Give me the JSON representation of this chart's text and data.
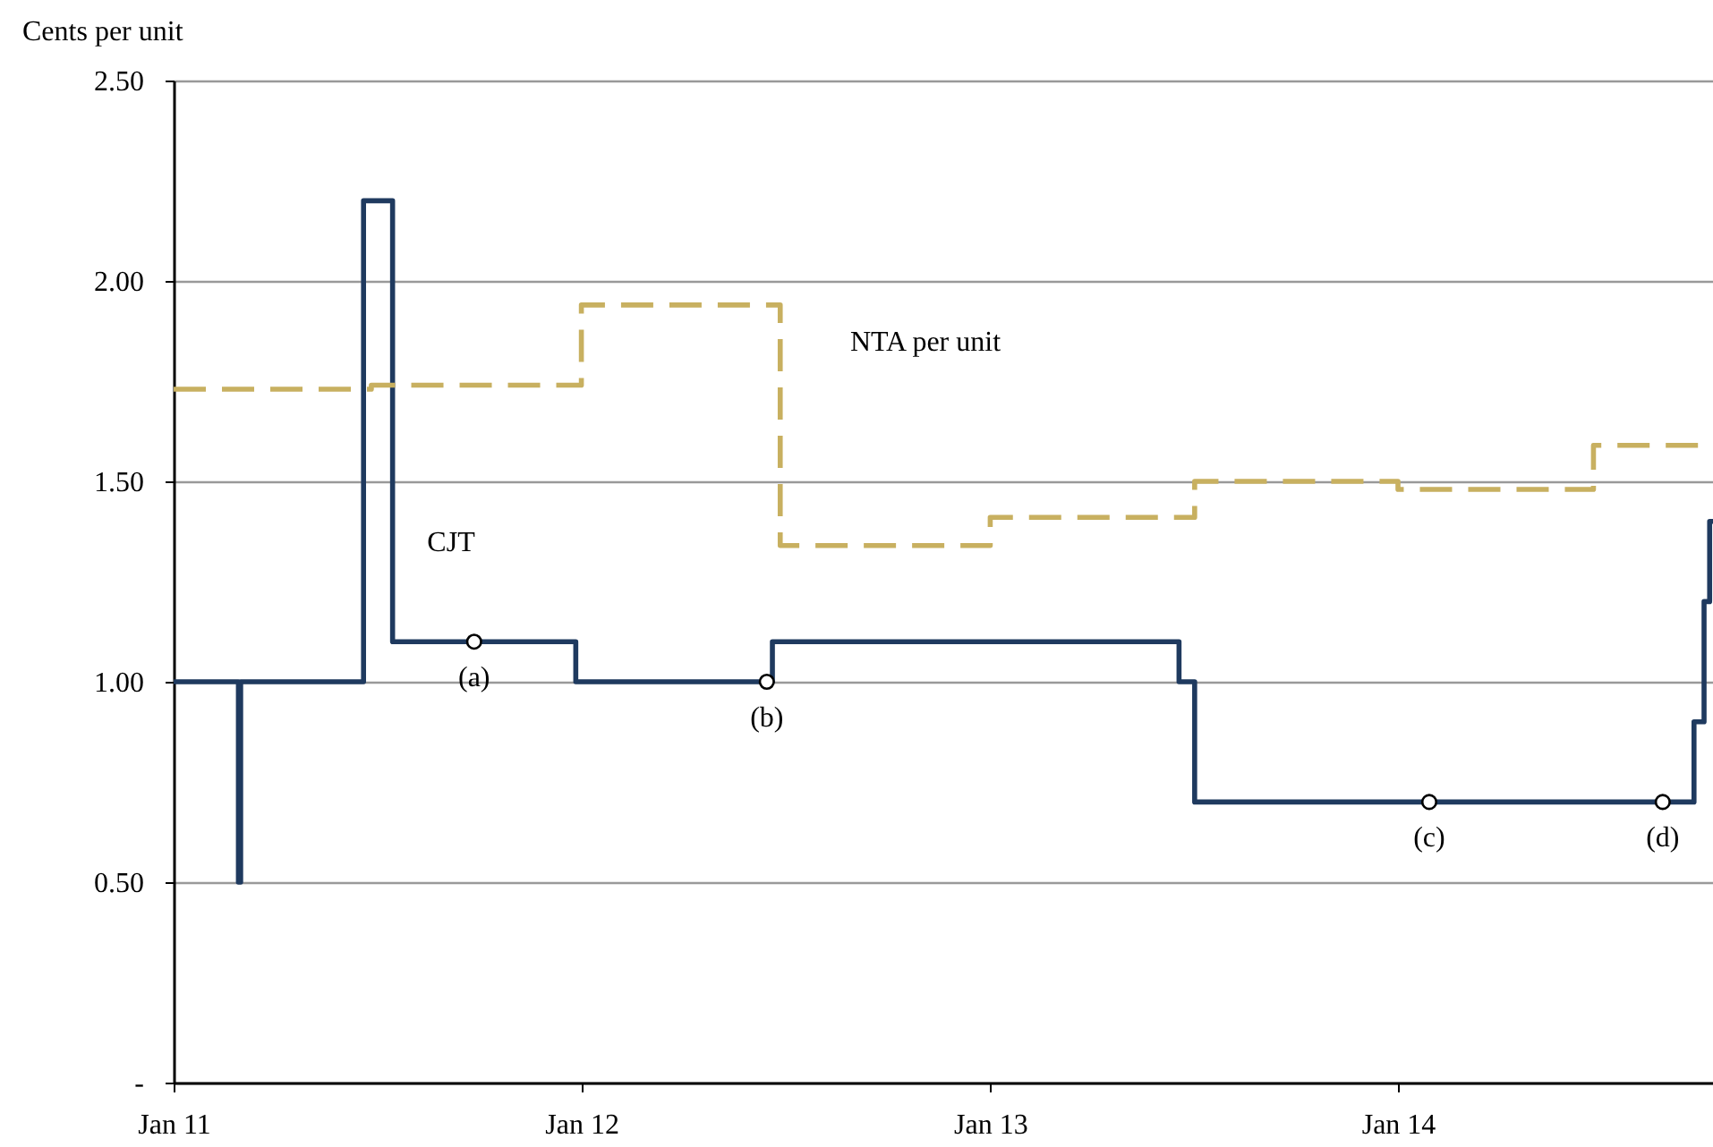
{
  "chart_data": {
    "type": "step",
    "ylabel": "Cents per unit",
    "xlim": [
      "2011-01-01",
      "2014-10-10"
    ],
    "xticks": [
      {
        "value": "2011-01-01",
        "label": "Jan 11"
      },
      {
        "value": "2012-01-01",
        "label": "Jan 12"
      },
      {
        "value": "2013-01-01",
        "label": "Jan 13"
      },
      {
        "value": "2014-01-01",
        "label": "Jan 14"
      }
    ],
    "ylim": [
      0,
      2.5
    ],
    "yticks": [
      {
        "value": 0,
        "label": "-"
      },
      {
        "value": 0.5,
        "label": "0.50"
      },
      {
        "value": 1,
        "label": "1.00"
      },
      {
        "value": 1.5,
        "label": "1.50"
      },
      {
        "value": 2,
        "label": "2.00"
      },
      {
        "value": 2.5,
        "label": "2.50"
      }
    ],
    "grid": "y",
    "series": [
      {
        "name": "CJT",
        "color": "#1f3a5f",
        "line_style": "solid",
        "x": [
          "2011-01-01",
          "2011-02-28",
          "2011-03-02",
          "2011-06-20",
          "2011-07-16",
          "2011-12-27",
          "2012-06-20",
          "2013-06-19",
          "2013-07-03",
          "2014-09-23",
          "2014-10-02",
          "2014-10-07",
          "2014-10-10"
        ],
        "values": [
          1.0,
          0.5,
          1.0,
          2.2,
          1.1,
          1.0,
          1.1,
          1.0,
          0.7,
          0.9,
          1.2,
          1.4,
          1.4
        ]
      },
      {
        "name": "NTA per unit",
        "color": "#c8b060",
        "line_style": "dashed",
        "x": [
          "2011-01-01",
          "2011-06-27",
          "2012-01-01",
          "2012-06-27",
          "2013-01-01",
          "2013-07-03",
          "2014-01-01",
          "2014-06-25",
          "2014-10-10"
        ],
        "values": [
          1.73,
          1.74,
          1.94,
          1.34,
          1.41,
          1.5,
          1.48,
          1.59,
          1.59
        ]
      },
      {
        "type": "scatter",
        "color": "#ffffff",
        "marker": "circle",
        "x": [
          "2011-09-27",
          "2012-06-15",
          "2014-01-29",
          "2014-08-26"
        ],
        "values": [
          1.1,
          1.0,
          0.7,
          0.7
        ]
      }
    ],
    "annotations": [
      {
        "text": "(a)",
        "x": "2011-09-27",
        "y": 1.1
      },
      {
        "text": "(b)",
        "x": "2012-06-15",
        "y": 1.0
      },
      {
        "text": "(c)",
        "x": "2014-01-29",
        "y": 0.7
      },
      {
        "text": "(d)",
        "x": "2014-08-26",
        "y": 0.7
      }
    ]
  }
}
